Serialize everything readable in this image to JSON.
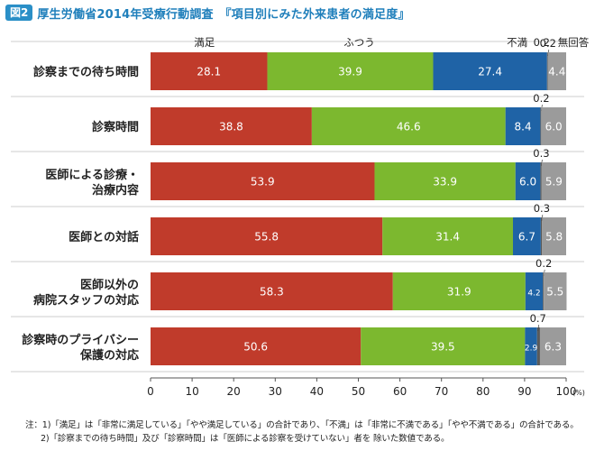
{
  "figure": {
    "badge": "図2",
    "title": "厚生労働省2014年受療行動調査　『項目別にみた外来患者の満足度』"
  },
  "chart_data": {
    "type": "bar",
    "orientation": "horizontal",
    "stacked": true,
    "categories": [
      [
        "診察までの待ち時間"
      ],
      [
        "診察時間"
      ],
      [
        "医師による診療・",
        "治療内容"
      ],
      [
        "医師との対話"
      ],
      [
        "医師以外の",
        "病院スタッフの対応"
      ],
      [
        "診察時のプライバシー",
        "保護の対応"
      ]
    ],
    "series": [
      {
        "name": "満足",
        "color": "#c03b2b",
        "values": [
          28.1,
          38.8,
          53.9,
          55.8,
          58.3,
          50.6
        ],
        "labels": [
          "28.1",
          "38.8",
          "53.9",
          "55.8",
          "58.3",
          "50.6"
        ]
      },
      {
        "name": "ふつう",
        "color": "#7cb82f",
        "values": [
          39.9,
          46.6,
          33.9,
          31.4,
          31.9,
          39.5
        ],
        "labels": [
          "39.9",
          "46.6",
          "33.9",
          "31.4",
          "31.9",
          "39.5"
        ]
      },
      {
        "name": "不満",
        "color": "#1f63a6",
        "values": [
          27.4,
          8.4,
          6.0,
          6.7,
          4.2,
          2.9
        ],
        "labels": [
          "27.4",
          "8.4",
          "6.0",
          "6.7",
          "4.2",
          "2.9"
        ]
      },
      {
        "name": "0.2",
        "color": "#5a5a5a",
        "values": [
          0.2,
          0.2,
          0.3,
          0.3,
          0.2,
          0.7
        ],
        "labels": [
          "0.2",
          "0.2",
          "0.3",
          "0.3",
          "0.2",
          "0.7"
        ]
      },
      {
        "name": "無回答",
        "color": "#9b9b9b",
        "values": [
          4.4,
          6.0,
          5.9,
          5.8,
          5.5,
          6.3
        ],
        "labels": [
          "4.4",
          "6.0",
          "5.9",
          "5.8",
          "5.5",
          "6.3"
        ]
      }
    ],
    "xlim": [
      0,
      100
    ],
    "xticks": [
      "0",
      "10",
      "20",
      "30",
      "40",
      "50",
      "60",
      "70",
      "80",
      "90",
      "100"
    ],
    "x_unit": "(%)",
    "grid": false,
    "legend": "top"
  },
  "notes": {
    "line1": "注：1)「満足」は「非常に満足している」「やや満足している」の合計であり、「不満」は「非常に不満である」「やや不満である」の合計である。",
    "line2": "2)「診察までの待ち時間」及び「診察時間」は「医師による診察を受けていない」者を 除いた数値である。"
  }
}
